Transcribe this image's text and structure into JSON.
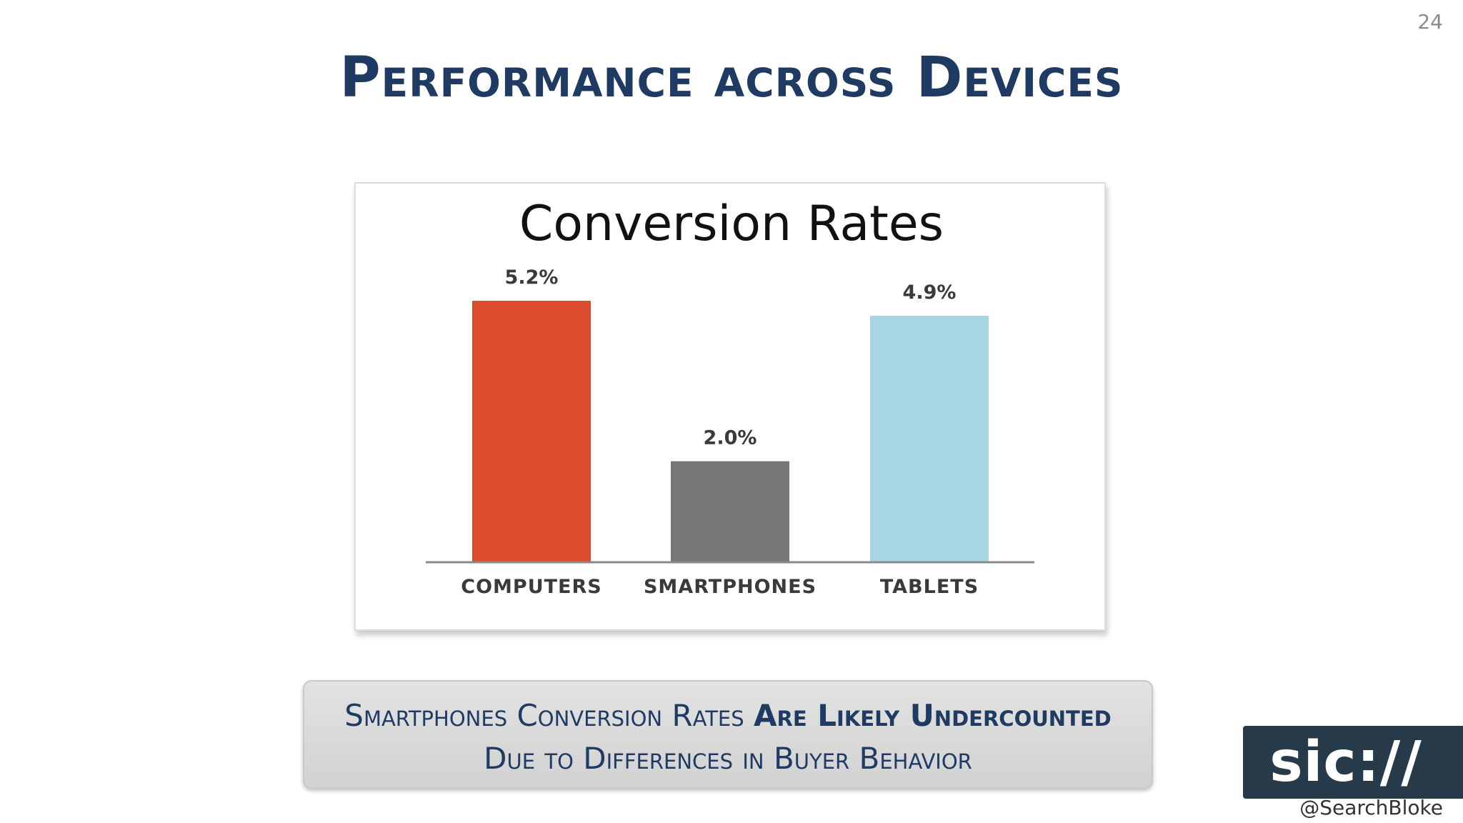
{
  "page_number": "24",
  "slide_title": "Performance across Devices",
  "chart_data": {
    "type": "bar",
    "title": "Conversion Rates",
    "categories": [
      "COMPUTERS",
      "SMARTPHONES",
      "TABLETS"
    ],
    "values": [
      5.2,
      2.0,
      4.9
    ],
    "value_labels": [
      "5.2%",
      "2.0%",
      "4.9%"
    ],
    "bar_colors": [
      "#db4b2e",
      "#767676",
      "#a6d6e2"
    ],
    "ylim": [
      0,
      5.2
    ],
    "grid": false,
    "legend": "none"
  },
  "callout": {
    "line1_regular": "Smartphones Conversion Rates ",
    "line1_bold": "Are Likely Undercounted",
    "line2": "Due to Differences in Buyer Behavior"
  },
  "logo_text": "sic://",
  "twitter_handle": "@SearchBloke"
}
